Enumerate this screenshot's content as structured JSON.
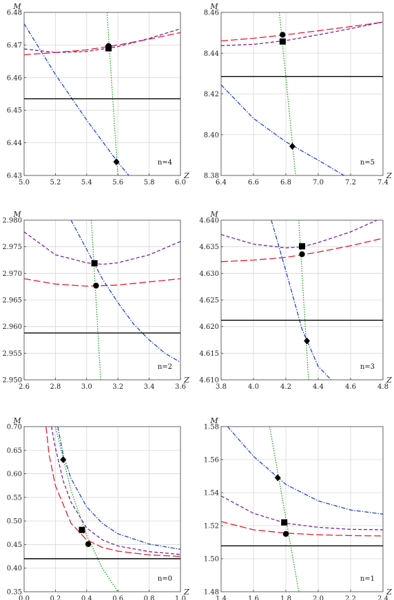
{
  "chart_data": [
    {
      "type": "line",
      "xlabel": "Z",
      "ylabel": "M",
      "annotation": "n=4",
      "xlim": [
        5.0,
        6.0
      ],
      "ylim": [
        6.43,
        6.48
      ],
      "xticks": [
        "5.0",
        "5.2",
        "5.4",
        "5.6",
        "5.8",
        "6.0"
      ],
      "yticks": [
        "6.43",
        "6.44",
        "6.45",
        "6.46",
        "6.47",
        "6.48"
      ],
      "grid": true,
      "series": [
        {
          "style": "long-dash",
          "color": "#e8192c",
          "x": [
            5.0,
            5.2,
            5.4,
            5.6,
            5.8,
            6.0
          ],
          "y": [
            6.467,
            6.4677,
            6.4685,
            6.47,
            6.4718,
            6.4738
          ]
        },
        {
          "style": "short-dash",
          "color": "#7a1fa2",
          "x": [
            5.0,
            5.2,
            5.4,
            5.6,
            5.8,
            6.0
          ],
          "y": [
            6.4688,
            6.4677,
            6.468,
            6.4695,
            6.472,
            6.475
          ]
        },
        {
          "style": "dash-dot",
          "color": "#1f3fe0",
          "x": [
            5.0,
            5.2,
            5.4,
            5.6,
            5.67
          ],
          "y": [
            6.4765,
            6.461,
            6.447,
            6.434,
            6.43
          ]
        },
        {
          "style": "dotted",
          "color": "#16a016",
          "x": [
            5.53,
            5.6
          ],
          "y": [
            6.48,
            6.43
          ]
        },
        {
          "style": "solid",
          "color": "#000000",
          "x": [
            5.0,
            6.0
          ],
          "y": [
            6.4535,
            6.4535
          ]
        }
      ],
      "markers": [
        {
          "shape": "circle",
          "x": 5.54,
          "y": 6.4697
        },
        {
          "shape": "square",
          "x": 5.54,
          "y": 6.469
        },
        {
          "shape": "diamond",
          "x": 5.59,
          "y": 6.4342
        }
      ]
    },
    {
      "type": "line",
      "xlabel": "Z",
      "ylabel": "M",
      "annotation": "n=5",
      "xlim": [
        6.4,
        7.4
      ],
      "ylim": [
        8.38,
        8.46
      ],
      "xticks": [
        "6.4",
        "6.6",
        "6.8",
        "7.0",
        "7.2",
        "7.4"
      ],
      "yticks": [
        "8.38",
        "8.40",
        "8.42",
        "8.44",
        "8.46"
      ],
      "grid": true,
      "series": [
        {
          "style": "long-dash",
          "color": "#e8192c",
          "x": [
            6.4,
            6.6,
            6.8,
            7.0,
            7.2,
            7.4
          ],
          "y": [
            8.446,
            8.4473,
            8.449,
            8.451,
            8.453,
            8.4552
          ]
        },
        {
          "style": "short-dash",
          "color": "#7a1fa2",
          "x": [
            6.4,
            6.6,
            6.8,
            7.0,
            7.2,
            7.4
          ],
          "y": [
            8.4437,
            8.4443,
            8.4462,
            8.449,
            8.452,
            8.4553
          ]
        },
        {
          "style": "dash-dot",
          "color": "#1f3fe0",
          "x": [
            6.4,
            6.6,
            6.8,
            7.0,
            7.16
          ],
          "y": [
            8.4245,
            8.408,
            8.3965,
            8.3875,
            8.38
          ]
        },
        {
          "style": "dotted",
          "color": "#16a016",
          "x": [
            6.76,
            6.86
          ],
          "y": [
            8.46,
            8.38
          ]
        },
        {
          "style": "solid",
          "color": "#000000",
          "x": [
            6.4,
            7.4
          ],
          "y": [
            8.4285,
            8.4285
          ]
        }
      ],
      "markers": [
        {
          "shape": "circle",
          "x": 6.78,
          "y": 8.449
        },
        {
          "shape": "square",
          "x": 6.78,
          "y": 8.4457
        },
        {
          "shape": "diamond",
          "x": 6.84,
          "y": 8.3943
        }
      ]
    },
    {
      "type": "line",
      "xlabel": "Z",
      "ylabel": "M",
      "annotation": "n=2",
      "xlim": [
        2.6,
        3.6
      ],
      "ylim": [
        2.95,
        2.98
      ],
      "xticks": [
        "2.6",
        "2.8",
        "3.0",
        "3.2",
        "3.4",
        "3.6"
      ],
      "yticks": [
        "2.950",
        "2.955",
        "2.960",
        "2.965",
        "2.970",
        "2.975",
        "2.980"
      ],
      "grid": true,
      "series": [
        {
          "style": "long-dash",
          "color": "#e8192c",
          "x": [
            2.6,
            2.8,
            3.0,
            3.2,
            3.4,
            3.6
          ],
          "y": [
            2.969,
            2.968,
            2.9676,
            2.9678,
            2.9684,
            2.969
          ]
        },
        {
          "style": "short-dash",
          "color": "#7a1fa2",
          "x": [
            2.6,
            2.8,
            3.0,
            3.1,
            3.2,
            3.4,
            3.6
          ],
          "y": [
            2.9778,
            2.9735,
            2.972,
            2.9717,
            2.972,
            2.9735,
            2.976
          ]
        },
        {
          "style": "dash-dot",
          "color": "#1f3fe0",
          "x": [
            2.9,
            3.0,
            3.1,
            3.2,
            3.3,
            3.4,
            3.5,
            3.6
          ],
          "y": [
            2.98,
            2.9745,
            2.969,
            2.9645,
            2.9605,
            2.9575,
            2.955,
            2.9533
          ]
        },
        {
          "style": "dotted",
          "color": "#16a016",
          "x": [
            3.03,
            3.09
          ],
          "y": [
            2.98,
            2.95
          ]
        },
        {
          "style": "solid",
          "color": "#000000",
          "x": [
            2.6,
            3.6
          ],
          "y": [
            2.9588,
            2.9588
          ]
        }
      ],
      "markers": [
        {
          "shape": "square",
          "x": 3.05,
          "y": 2.9719
        },
        {
          "shape": "circle",
          "x": 3.06,
          "y": 2.9677
        }
      ]
    },
    {
      "type": "line",
      "xlabel": "Z",
      "ylabel": "M",
      "annotation": "n=3",
      "xlim": [
        3.8,
        4.8
      ],
      "ylim": [
        4.61,
        4.64
      ],
      "xticks": [
        "3.8",
        "4.0",
        "4.2",
        "4.4",
        "4.6",
        "4.8"
      ],
      "yticks": [
        "4.610",
        "4.615",
        "4.620",
        "4.625",
        "4.630",
        "4.635",
        "4.640"
      ],
      "grid": true,
      "series": [
        {
          "style": "long-dash",
          "color": "#e8192c",
          "x": [
            3.8,
            4.0,
            4.2,
            4.4,
            4.6,
            4.8
          ],
          "y": [
            4.6322,
            4.6325,
            4.633,
            4.634,
            4.6352,
            4.6366
          ]
        },
        {
          "style": "short-dash",
          "color": "#7a1fa2",
          "x": [
            3.8,
            4.0,
            4.2,
            4.3,
            4.4,
            4.6,
            4.8
          ],
          "y": [
            4.6373,
            4.6355,
            4.6348,
            4.635,
            4.6358,
            4.6378,
            4.6405
          ]
        },
        {
          "style": "dash-dot",
          "color": "#1f3fe0",
          "x": [
            4.11,
            4.2,
            4.3,
            4.4,
            4.48
          ],
          "y": [
            4.64,
            4.6305,
            4.6195,
            4.6125,
            4.61
          ]
        },
        {
          "style": "dotted",
          "color": "#16a016",
          "x": [
            4.28,
            4.34
          ],
          "y": [
            4.64,
            4.61
          ]
        },
        {
          "style": "solid",
          "color": "#000000",
          "x": [
            3.8,
            4.8
          ],
          "y": [
            4.6212,
            4.6212
          ]
        }
      ],
      "markers": [
        {
          "shape": "square",
          "x": 4.3,
          "y": 4.6351
        },
        {
          "shape": "circle",
          "x": 4.3,
          "y": 4.6336
        },
        {
          "shape": "diamond",
          "x": 4.33,
          "y": 4.6173
        }
      ]
    },
    {
      "type": "line",
      "xlabel": "Z",
      "ylabel": "M",
      "annotation": "n=0",
      "xlim": [
        0.0,
        1.0
      ],
      "ylim": [
        0.35,
        0.7
      ],
      "xticks": [
        "0.0",
        "0.2",
        "0.4",
        "0.6",
        "0.8",
        "1.0"
      ],
      "yticks": [
        "0.35",
        "0.40",
        "0.45",
        "0.50",
        "0.55",
        "0.60",
        "0.65",
        "0.70"
      ],
      "grid": true,
      "series": [
        {
          "style": "long-dash",
          "color": "#e8192c",
          "x": [
            0.14,
            0.16,
            0.2,
            0.3,
            0.4,
            0.5,
            0.6,
            0.8,
            1.0
          ],
          "y": [
            0.7,
            0.64,
            0.575,
            0.495,
            0.46,
            0.444,
            0.436,
            0.428,
            0.425
          ]
        },
        {
          "style": "short-dash",
          "color": "#7a1fa2",
          "x": [
            0.175,
            0.2,
            0.25,
            0.3,
            0.4,
            0.5,
            0.6,
            0.8,
            1.0
          ],
          "y": [
            0.7,
            0.655,
            0.585,
            0.54,
            0.485,
            0.46,
            0.447,
            0.435,
            0.429
          ]
        },
        {
          "style": "dash-dot",
          "color": "#1f3fe0",
          "x": [
            0.215,
            0.25,
            0.3,
            0.4,
            0.5,
            0.6,
            0.8,
            1.0
          ],
          "y": [
            0.7,
            0.64,
            0.59,
            0.53,
            0.495,
            0.473,
            0.451,
            0.44
          ]
        },
        {
          "style": "dotted",
          "color": "#16a016",
          "x": [
            0.2,
            0.3,
            0.4,
            0.5,
            0.6
          ],
          "y": [
            0.7,
            0.565,
            0.47,
            0.4,
            0.35
          ]
        },
        {
          "style": "solid",
          "color": "#000000",
          "x": [
            0.0,
            1.0
          ],
          "y": [
            0.42,
            0.42
          ]
        }
      ],
      "markers": [
        {
          "shape": "diamond",
          "x": 0.25,
          "y": 0.63
        },
        {
          "shape": "square",
          "x": 0.37,
          "y": 0.481
        },
        {
          "shape": "circle",
          "x": 0.41,
          "y": 0.451
        }
      ]
    },
    {
      "type": "line",
      "xlabel": "Z",
      "ylabel": "M",
      "annotation": "n=1",
      "xlim": [
        1.4,
        2.4
      ],
      "ylim": [
        1.48,
        1.58
      ],
      "xticks": [
        "1.4",
        "1.6",
        "1.8",
        "2.0",
        "2.2",
        "2.4"
      ],
      "yticks": [
        "1.48",
        "1.50",
        "1.52",
        "1.54",
        "1.56",
        "1.58"
      ],
      "grid": true,
      "series": [
        {
          "style": "long-dash",
          "color": "#e8192c",
          "x": [
            1.4,
            1.6,
            1.8,
            2.0,
            2.2,
            2.4
          ],
          "y": [
            1.5225,
            1.5175,
            1.5155,
            1.5145,
            1.514,
            1.5138
          ]
        },
        {
          "style": "short-dash",
          "color": "#7a1fa2",
          "x": [
            1.4,
            1.6,
            1.8,
            2.0,
            2.2,
            2.4
          ],
          "y": [
            1.538,
            1.5275,
            1.5215,
            1.519,
            1.5178,
            1.5175
          ]
        },
        {
          "style": "dash-dot",
          "color": "#1f3fe0",
          "x": [
            1.44,
            1.6,
            1.8,
            2.0,
            2.2,
            2.4
          ],
          "y": [
            1.58,
            1.562,
            1.545,
            1.535,
            1.5295,
            1.527
          ]
        },
        {
          "style": "dotted",
          "color": "#16a016",
          "x": [
            1.7,
            1.88
          ],
          "y": [
            1.58,
            1.48
          ]
        },
        {
          "style": "solid",
          "color": "#000000",
          "x": [
            1.4,
            2.4
          ],
          "y": [
            1.5078,
            1.5078
          ]
        }
      ],
      "markers": [
        {
          "shape": "diamond",
          "x": 1.75,
          "y": 1.549
        },
        {
          "shape": "square",
          "x": 1.79,
          "y": 1.522
        },
        {
          "shape": "circle",
          "x": 1.8,
          "y": 1.515
        }
      ]
    }
  ]
}
